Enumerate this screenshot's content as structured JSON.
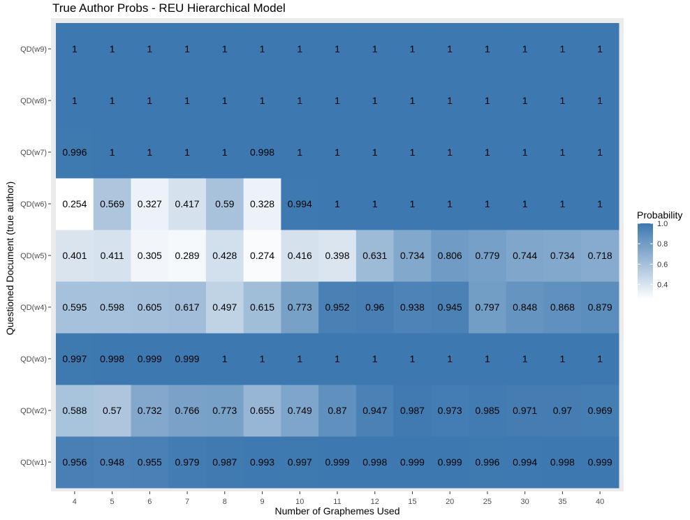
{
  "chart_data": {
    "type": "heatmap",
    "title": "True Author Probs - REU Hierarchical Model",
    "xlabel": "Number of Graphemes Used",
    "ylabel": "Questioned Document (true author)",
    "x": [
      "4",
      "5",
      "6",
      "7",
      "8",
      "9",
      "10",
      "11",
      "12",
      "15",
      "20",
      "25",
      "30",
      "35",
      "40"
    ],
    "y": [
      "QD(w1)",
      "QD(w2)",
      "QD(w3)",
      "QD(w4)",
      "QD(w5)",
      "QD(w6)",
      "QD(w7)",
      "QD(w8)",
      "QD(w9)"
    ],
    "values": [
      [
        "0.956",
        "0.948",
        "0.955",
        "0.979",
        "0.987",
        "0.993",
        "0.997",
        "0.999",
        "0.998",
        "0.999",
        "0.999",
        "0.996",
        "0.994",
        "0.998",
        "0.999"
      ],
      [
        "0.588",
        "0.57",
        "0.732",
        "0.766",
        "0.773",
        "0.655",
        "0.749",
        "0.87",
        "0.947",
        "0.987",
        "0.973",
        "0.985",
        "0.971",
        "0.97",
        "0.969"
      ],
      [
        "0.997",
        "0.998",
        "0.999",
        "0.999",
        "1",
        "1",
        "1",
        "1",
        "1",
        "1",
        "1",
        "1",
        "1",
        "1",
        "1"
      ],
      [
        "0.595",
        "0.598",
        "0.605",
        "0.617",
        "0.497",
        "0.615",
        "0.773",
        "0.952",
        "0.96",
        "0.938",
        "0.945",
        "0.797",
        "0.848",
        "0.868",
        "0.879"
      ],
      [
        "0.401",
        "0.411",
        "0.305",
        "0.289",
        "0.428",
        "0.274",
        "0.416",
        "0.398",
        "0.631",
        "0.734",
        "0.806",
        "0.779",
        "0.744",
        "0.734",
        "0.718"
      ],
      [
        "0.254",
        "0.569",
        "0.327",
        "0.417",
        "0.59",
        "0.328",
        "0.994",
        "1",
        "1",
        "1",
        "1",
        "1",
        "1",
        "1",
        "1"
      ],
      [
        "0.996",
        "1",
        "1",
        "1",
        "1",
        "0.998",
        "1",
        "1",
        "1",
        "1",
        "1",
        "1",
        "1",
        "1",
        "1"
      ],
      [
        "1",
        "1",
        "1",
        "1",
        "1",
        "1",
        "1",
        "1",
        "1",
        "1",
        "1",
        "1",
        "1",
        "1",
        "1"
      ],
      [
        "1",
        "1",
        "1",
        "1",
        "1",
        "1",
        "1",
        "1",
        "1",
        "1",
        "1",
        "1",
        "1",
        "1",
        "1"
      ]
    ],
    "legend": {
      "title": "Probability",
      "ticks": [
        "0.4",
        "0.6",
        "0.8",
        "1.0"
      ],
      "placement": "right"
    },
    "color_scale": {
      "min": 0.254,
      "max": 1.0,
      "low": "#ffffff",
      "high": "#3d78b0"
    },
    "panel_background": "#ebebeb",
    "grid": false
  }
}
